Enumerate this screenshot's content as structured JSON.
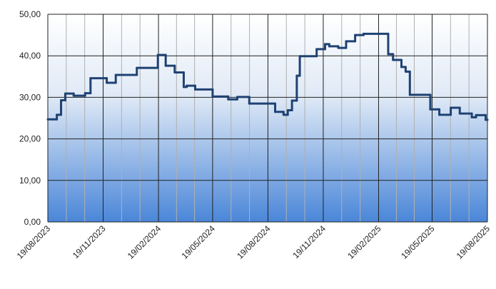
{
  "chart_data": {
    "type": "step",
    "x": [
      "2023-08-19",
      "2023-09-03",
      "2023-09-10",
      "2023-09-17",
      "2023-10-01",
      "2023-10-20",
      "2023-10-29",
      "2023-11-25",
      "2023-12-10",
      "2024-01-14",
      "2024-02-18",
      "2024-03-02",
      "2024-03-17",
      "2024-04-01",
      "2024-04-06",
      "2024-04-20",
      "2024-05-19",
      "2024-06-14",
      "2024-06-29",
      "2024-07-19",
      "2024-08-31",
      "2024-09-14",
      "2024-09-21",
      "2024-09-28",
      "2024-10-06",
      "2024-10-11",
      "2024-11-08",
      "2024-11-22",
      "2024-11-29",
      "2024-12-14",
      "2024-12-27",
      "2025-01-11",
      "2025-01-25",
      "2025-03-07",
      "2025-03-15",
      "2025-03-29",
      "2025-04-05",
      "2025-04-12",
      "2025-05-16",
      "2025-05-31",
      "2025-06-19",
      "2025-07-04",
      "2025-07-24",
      "2025-07-31",
      "2025-08-16",
      "2025-08-19"
    ],
    "values": [
      24.7,
      25.8,
      29.3,
      30.9,
      30.4,
      31,
      34.6,
      33.5,
      35.4,
      37.1,
      40.2,
      37.6,
      36,
      32.5,
      32.8,
      31.9,
      30.2,
      29.5,
      30.1,
      28.5,
      26.5,
      25.8,
      26.9,
      29.2,
      35.2,
      39.9,
      41.6,
      42.8,
      42.3,
      41.9,
      43.5,
      45,
      45.3,
      40.4,
      39,
      37.3,
      36.2,
      30.6,
      27.1,
      25.8,
      27.5,
      26.1,
      25.2,
      25.7,
      24.6,
      24.6
    ],
    "color": "#1f4273",
    "xlim": [
      "2023-08-19",
      "2025-08-19"
    ],
    "xticks": [
      {
        "value": "2023-08-19",
        "label": "19/08/2023"
      },
      {
        "value": "2023-11-19",
        "label": "19/11/2023"
      },
      {
        "value": "2024-02-19",
        "label": "19/02/2024"
      },
      {
        "value": "2024-05-19",
        "label": "19/05/2024"
      },
      {
        "value": "2024-08-19",
        "label": "19/08/2024"
      },
      {
        "value": "2024-11-19",
        "label": "19/11/2024"
      },
      {
        "value": "2025-02-19",
        "label": "19/02/2025"
      },
      {
        "value": "2025-05-19",
        "label": "19/05/2025"
      },
      {
        "value": "2025-08-19",
        "label": "19/08/2025"
      }
    ],
    "ylim": [
      0,
      50
    ],
    "yticks": [
      {
        "value": 0,
        "label": "0,00"
      },
      {
        "value": 10,
        "label": "10,00"
      },
      {
        "value": 20,
        "label": "20,00"
      },
      {
        "value": 30,
        "label": "30,00"
      },
      {
        "value": 40,
        "label": "40,00"
      },
      {
        "value": 50,
        "label": "50,00"
      }
    ],
    "grid": true
  }
}
